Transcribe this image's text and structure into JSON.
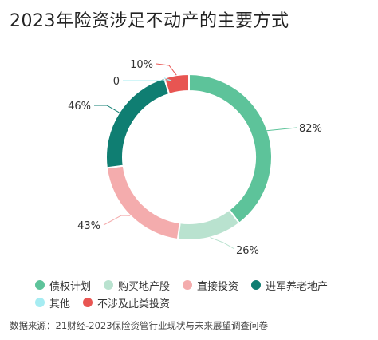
{
  "title": "2023年险资涉足不动产的主要方式",
  "source": "数据来源：21财经-2023保险资管行业现状与未来展望调查问卷",
  "chart_data": {
    "type": "pie",
    "style": "donut",
    "categories": [
      "债权计划",
      "购买地产股",
      "直接投资",
      "进军养老地产",
      "其他",
      "不涉及此类投资"
    ],
    "values": [
      82,
      26,
      43,
      46,
      0,
      10
    ],
    "labels": [
      "82%",
      "26%",
      "43%",
      "46%",
      "0",
      "10%"
    ],
    "colors": [
      "#5dc39a",
      "#b9e2cf",
      "#f4acad",
      "#0f7e72",
      "#a6ecf2",
      "#e85552"
    ],
    "legend_position": "bottom"
  }
}
